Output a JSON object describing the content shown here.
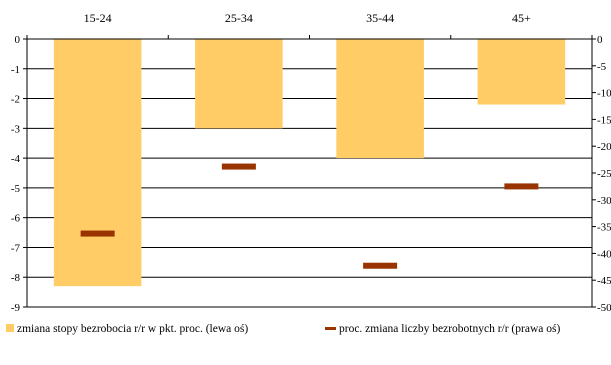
{
  "chart_data": {
    "type": "bar",
    "title": "",
    "categories": [
      "15-24",
      "25-34",
      "35-44",
      "45+"
    ],
    "left_axis": {
      "ylim": [
        -9,
        0
      ],
      "ticks": [
        0,
        -1,
        -2,
        -3,
        -4,
        -5,
        -6,
        -7,
        -8,
        -9
      ],
      "tick_labels": [
        "0",
        "-1",
        "-2",
        "-3",
        "-4",
        "-5",
        "-6",
        "-7",
        "-8",
        "-9"
      ]
    },
    "right_axis": {
      "ylim": [
        -50,
        0
      ],
      "ticks": [
        0,
        -5,
        -10,
        -15,
        -20,
        -25,
        -30,
        -35,
        -40,
        -45,
        -50
      ],
      "tick_labels": [
        "0",
        "-5",
        "-10",
        "-15",
        "-20",
        "-25",
        "-30",
        "-35",
        "-40",
        "-45",
        "-50"
      ]
    },
    "grid": true,
    "legend_position": "bottom",
    "series": [
      {
        "name": "zmiana stopy bezrobocia r/r w pkt. proc. (lewa oś)",
        "kind": "bar",
        "axis": "left",
        "color": "#FFCC66",
        "values": [
          -8.3,
          -3.0,
          -4.0,
          -2.2
        ]
      },
      {
        "name": "proc. zmiana liczby bezrobotnych r/r (prawa oś)",
        "kind": "marker",
        "axis": "right",
        "color": "#993300",
        "values": [
          -36.3,
          -23.8,
          -42.3,
          -27.5
        ]
      }
    ]
  }
}
